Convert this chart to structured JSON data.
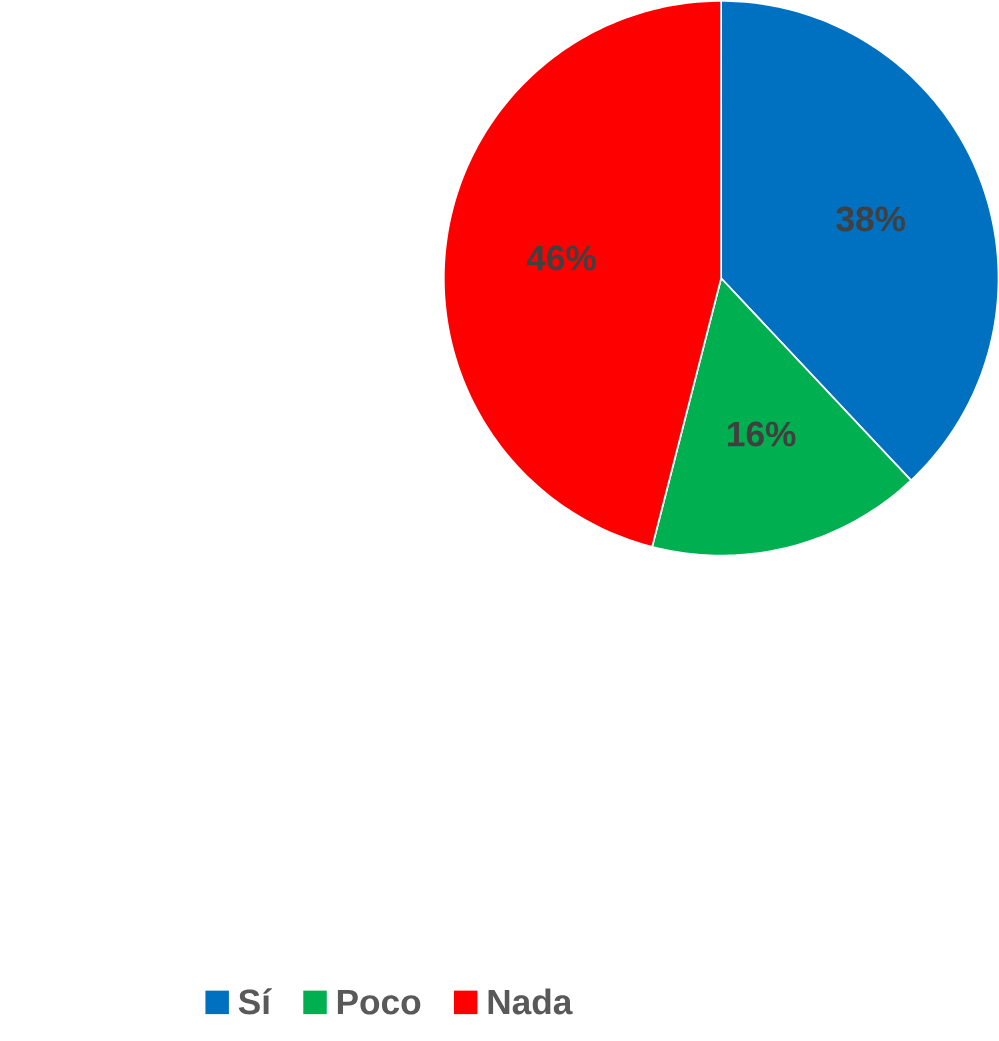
{
  "chart_data": {
    "type": "pie",
    "categories": [
      "Sí",
      "Poco",
      "Nada"
    ],
    "values": [
      38,
      16,
      46
    ],
    "colors": [
      "#0070c0",
      "#00b050",
      "#ff0000"
    ],
    "value_labels": [
      "38%",
      "16%",
      "46%"
    ],
    "legend": "bottom"
  }
}
